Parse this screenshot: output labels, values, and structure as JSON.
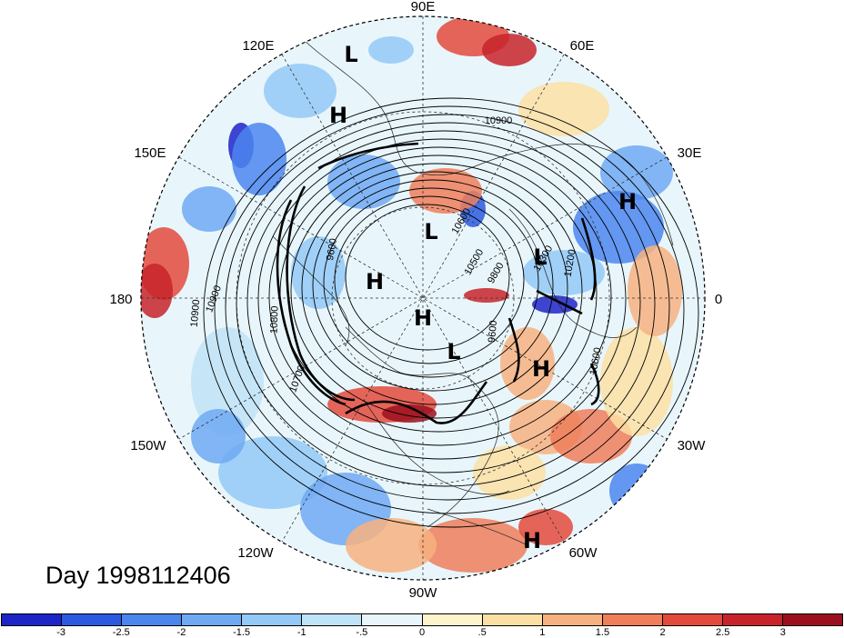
{
  "map": {
    "projection": "polar stereographic",
    "hemisphere": "north",
    "longitude_labels": [
      "90E",
      "60E",
      "30E",
      "0",
      "30W",
      "60W",
      "90W",
      "120W",
      "150W",
      "180",
      "150E",
      "120E"
    ],
    "contour_labels": [
      "10900",
      "10900",
      "10900",
      "10800",
      "10700",
      "10300",
      "9600",
      "9800",
      "10200",
      "10600",
      "9600",
      "10600",
      "10500"
    ],
    "pressure_centers": [
      "L",
      "H",
      "H",
      "L",
      "H",
      "L",
      "L",
      "H",
      "H",
      "H"
    ],
    "shading_colors": [
      "#1d24c8",
      "#2b59e0",
      "#4b86ee",
      "#6fa9f3",
      "#93c9f6",
      "#bfe3f7",
      "#e8f6fb",
      "#fdf3cc",
      "#fbe0a4",
      "#f7b180",
      "#ef7e5a",
      "#e34a3c",
      "#c8232a",
      "#9c0f1e"
    ]
  },
  "day_label": "Day 1998112406",
  "colorbar": {
    "tick_labels": [
      "-3",
      "-2.5",
      "-2",
      "-1.5",
      "-1",
      "-.5",
      "0",
      ".5",
      "1",
      "1.5",
      "2",
      "2.5",
      "3"
    ],
    "colors": [
      "#1d24c8",
      "#2b59e0",
      "#4b86ee",
      "#6fa9f3",
      "#93c9f6",
      "#bfe3f7",
      "#e8f6fb",
      "#fdf3cc",
      "#fbe0a4",
      "#f7b180",
      "#ef7e5a",
      "#e34a3c",
      "#c8232a",
      "#9c0f1e"
    ]
  }
}
